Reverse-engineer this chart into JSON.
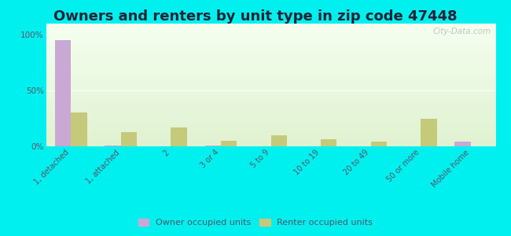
{
  "title": "Owners and renters by unit type in zip code 47448",
  "categories": [
    "1, detached",
    "1, attached",
    "2",
    "3 or 4",
    "5 to 9",
    "10 to 19",
    "20 to 49",
    "50 or more",
    "Mobile home"
  ],
  "owner_values": [
    95,
    1,
    0,
    1,
    0,
    0,
    0,
    0,
    4
  ],
  "renter_values": [
    30,
    13,
    17,
    5,
    10,
    6,
    4,
    25,
    0
  ],
  "owner_color": "#c9a8d4",
  "renter_color": "#c5c97a",
  "outer_bg": "#00f0f0",
  "title_fontsize": 13,
  "bar_width": 0.32,
  "ylim": [
    0,
    110
  ],
  "yticks": [
    0,
    50,
    100
  ],
  "ytick_labels": [
    "0%",
    "50%",
    "100%"
  ],
  "watermark": "City-Data.com"
}
